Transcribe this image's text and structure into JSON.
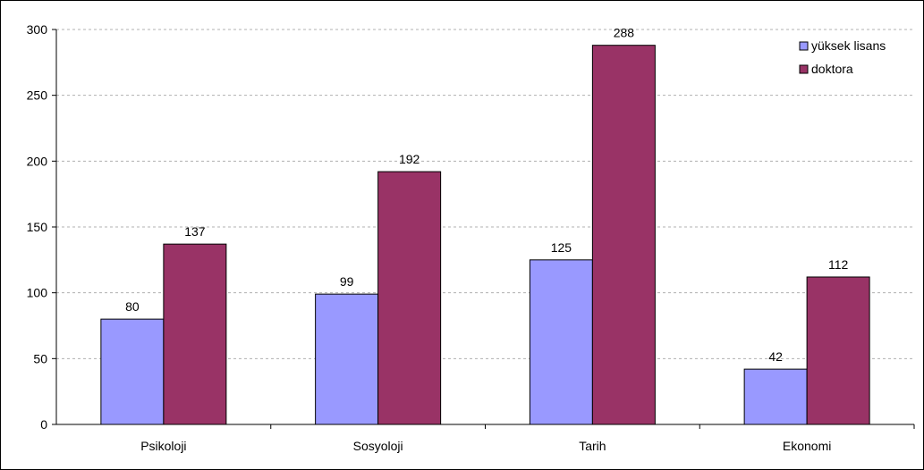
{
  "chart_data": {
    "type": "bar",
    "categories": [
      "Psikoloji",
      "Sosyoloji",
      "Tarih",
      "Ekonomi"
    ],
    "series": [
      {
        "name": "yüksek lisans",
        "values": [
          80,
          99,
          125,
          42
        ],
        "color": "#9999ff"
      },
      {
        "name": "doktora",
        "values": [
          137,
          192,
          288,
          112
        ],
        "color": "#993366"
      }
    ],
    "ylim": [
      0,
      300
    ],
    "yticks": [
      0,
      50,
      100,
      150,
      200,
      250,
      300
    ],
    "grid": "horizontal dashed",
    "legend_position": "top-right",
    "data_labels": true,
    "title": "",
    "xlabel": "",
    "ylabel": ""
  }
}
